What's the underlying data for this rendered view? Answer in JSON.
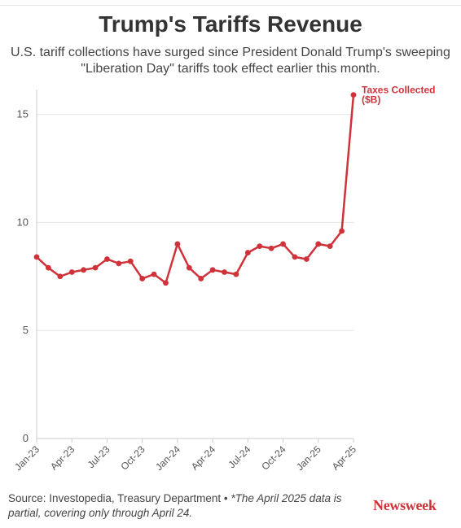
{
  "title": "Trump's Tariffs Revenue",
  "subtitle": "U.S. tariff collections have surged since President Donald Trump's sweeping \"Liberation Day\" tariffs took effect earlier this month.",
  "footer": {
    "source": "Source: Investopedia, Treasury Department • ",
    "note": "*The April 2025 data is partial, covering only through April 24."
  },
  "brand": "Newsweek",
  "colors": {
    "line": "#d0323a",
    "grid": "#e6e6e6",
    "axis": "#cccccc",
    "text": "#333333",
    "brand": "#d0323a"
  },
  "chart_data": {
    "type": "line",
    "title": "Trump's Tariffs Revenue",
    "xlabel": "",
    "ylabel": "",
    "ylim": [
      0,
      16
    ],
    "yticks": [
      0,
      5,
      10,
      15
    ],
    "xtick_labels": [
      "Jan-23",
      "Apr-23",
      "Jul-23",
      "Oct-23",
      "Jan-24",
      "Apr-24",
      "Jul-24",
      "Oct-24",
      "Jan-25",
      "Apr-25"
    ],
    "grid": true,
    "series": [
      {
        "name": "Taxes Collected ($B)",
        "name_lines": [
          "Taxes Collected",
          "($B)"
        ],
        "x": [
          "2023-01",
          "2023-02",
          "2023-03",
          "2023-04",
          "2023-05",
          "2023-06",
          "2023-07",
          "2023-08",
          "2023-09",
          "2023-10",
          "2023-11",
          "2023-12",
          "2024-01",
          "2024-02",
          "2024-03",
          "2024-04",
          "2024-05",
          "2024-06",
          "2024-07",
          "2024-08",
          "2024-09",
          "2024-10",
          "2024-11",
          "2024-12",
          "2025-01",
          "2025-02",
          "2025-03",
          "2025-04"
        ],
        "values": [
          8.4,
          7.9,
          7.5,
          7.7,
          7.8,
          7.9,
          8.3,
          8.1,
          8.2,
          7.4,
          7.6,
          7.2,
          9.0,
          7.9,
          7.4,
          7.8,
          7.7,
          7.6,
          8.6,
          8.9,
          8.8,
          9.0,
          8.4,
          8.3,
          9.0,
          8.9,
          9.6,
          15.9
        ]
      }
    ]
  }
}
